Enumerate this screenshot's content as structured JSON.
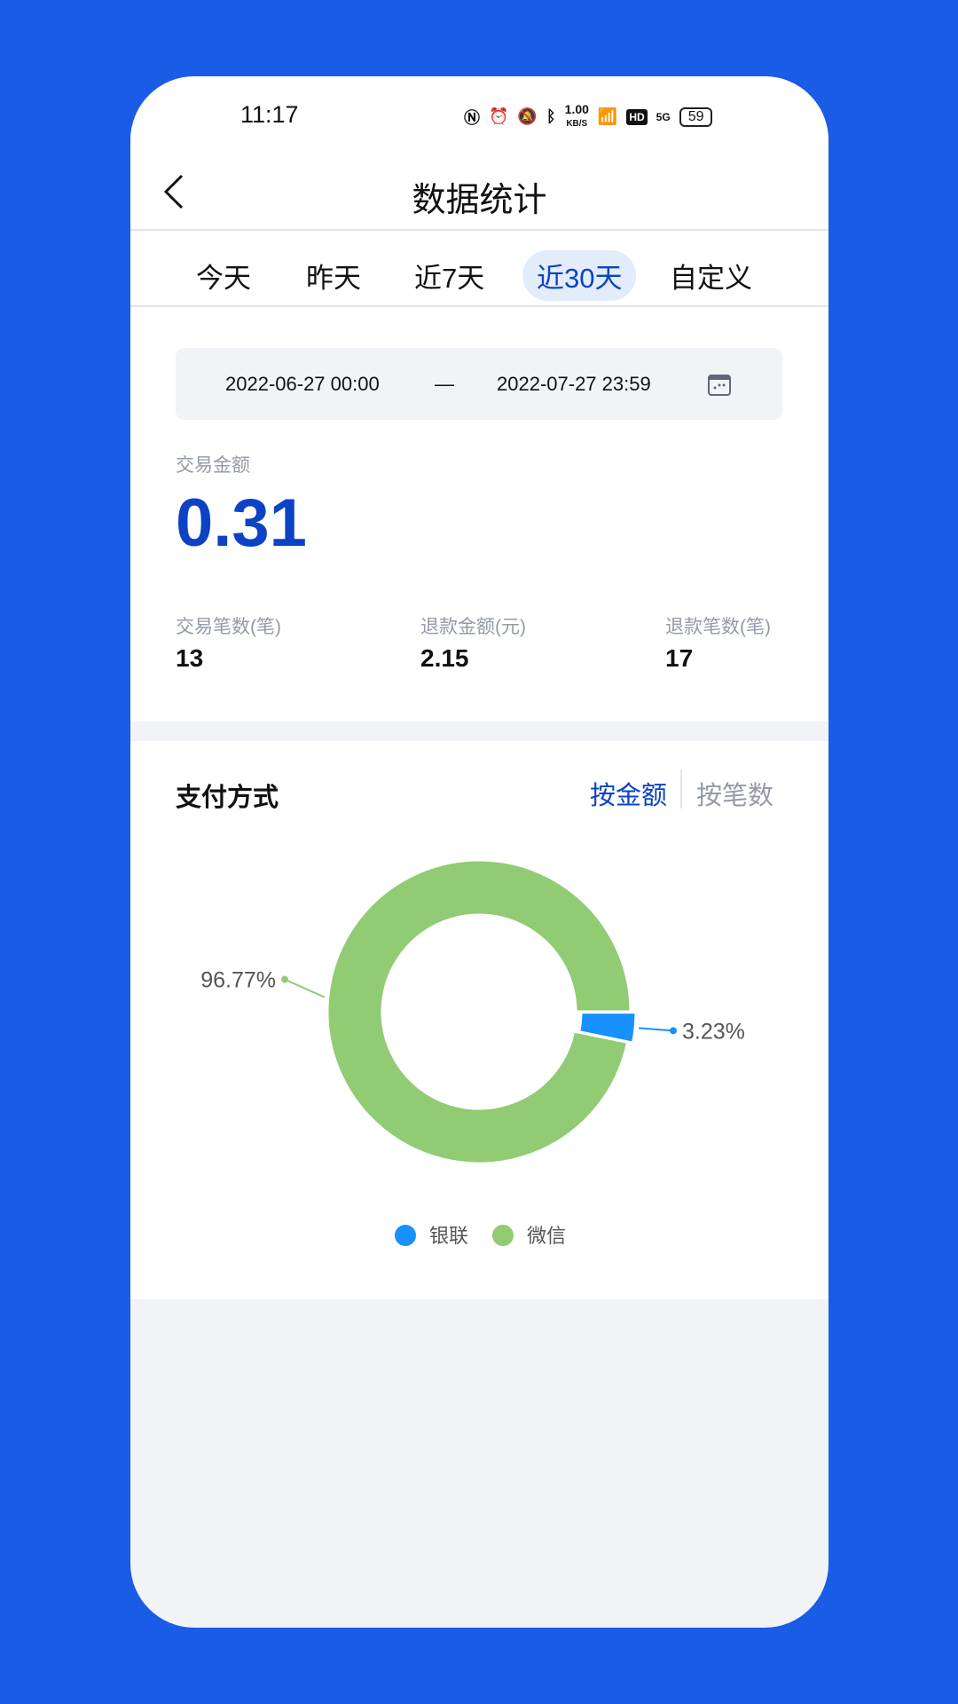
{
  "status": {
    "time": "11:17",
    "net_speed": "1.00",
    "net_unit": "KB/S",
    "hd": "HD",
    "net": "5G",
    "battery": "59"
  },
  "header": {
    "title": "数据统计"
  },
  "tabs": [
    {
      "label": "今天"
    },
    {
      "label": "昨天"
    },
    {
      "label": "近7天"
    },
    {
      "label": "近30天",
      "active": true
    },
    {
      "label": "自定义"
    }
  ],
  "date_range": {
    "start": "2022-06-27 00:00",
    "separator": "—",
    "end": "2022-07-27 23:59"
  },
  "summary": {
    "amount_label": "交易金额",
    "amount": "0.31",
    "stats": [
      {
        "label": "交易笔数(笔)",
        "value": "13"
      },
      {
        "label": "退款金额(元)",
        "value": "2.15"
      },
      {
        "label": "退款笔数(笔)",
        "value": "17"
      }
    ]
  },
  "payment": {
    "title": "支付方式",
    "mode_amount": "按金额",
    "mode_count": "按笔数"
  },
  "colors": {
    "accent": "#0c43c4",
    "unionpay": "#1890ff",
    "wechat": "#91cb74"
  },
  "chart_data": {
    "type": "pie",
    "donut": true,
    "series": [
      {
        "name": "银联",
        "value": 3.23,
        "label": "3.23%",
        "color": "#1890ff"
      },
      {
        "name": "微信",
        "value": 96.77,
        "label": "96.77%",
        "color": "#91cb74"
      }
    ],
    "legend": "bottom"
  }
}
